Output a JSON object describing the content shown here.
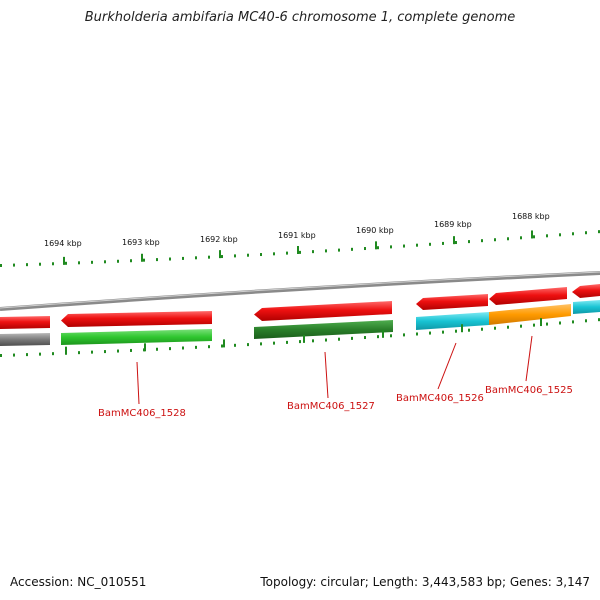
{
  "title": "Burkholderia ambifaria MC40-6 chromosome 1, complete genome",
  "footer": {
    "accession": "Accession: NC_010551",
    "summary": "Topology: circular; Length: 3,443,583 bp; Genes: 3,147"
  },
  "scale_labels": [
    "1694 kbp",
    "1693 kbp",
    "1692 kbp",
    "1691 kbp",
    "1690 kbp",
    "1689 kbp",
    "1688 kbp"
  ],
  "gene_labels": [
    "BamMC406_1528",
    "BamMC406_1527",
    "BamMC406_1526",
    "BamMC406_1525"
  ],
  "colors": {
    "forward_strand": "#e81010",
    "green": "#33cc33",
    "dark_green": "#2e8b2e",
    "cyan": "#1ac6d6",
    "orange": "#ff9900",
    "gray": "#777777",
    "label_red": "#cc1111",
    "tick_green": "#1f8a1f"
  }
}
